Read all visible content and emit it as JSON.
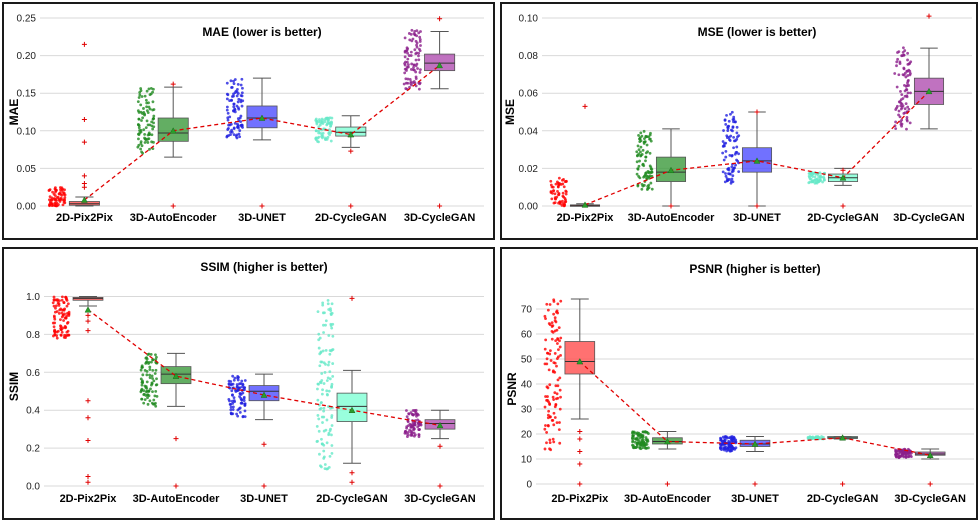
{
  "chart_data": [
    {
      "type": "box",
      "title": "MAE (lower is better)",
      "ylabel": "MAE",
      "ylim": [
        0,
        0.25
      ],
      "yticks": [
        "0.00",
        "0.05",
        "0.10",
        "0.15",
        "0.20",
        "0.25"
      ],
      "ytick_values": [
        0,
        0.05,
        0.1,
        0.15,
        0.2,
        0.25
      ],
      "categories": [
        "2D-Pix2Pix",
        "3D-AutoEncoder",
        "3D-UNET",
        "2D-CycleGAN",
        "3D-CycleGAN"
      ],
      "colors": [
        "#ff4d4d",
        "#3c9a3c",
        "#4d4dff",
        "#7fffd4",
        "#b04fb0"
      ],
      "point_colors": [
        "#ff0000",
        "#1f8a1f",
        "#2020e0",
        "#66e8c8",
        "#8b1e8b"
      ],
      "boxes": [
        {
          "min": 0.0,
          "q1": 0.001,
          "median": 0.003,
          "q3": 0.006,
          "max": 0.012,
          "mean": 0.008
        },
        {
          "min": 0.065,
          "q1": 0.086,
          "median": 0.097,
          "q3": 0.117,
          "max": 0.158,
          "mean": 0.1
        },
        {
          "min": 0.088,
          "q1": 0.104,
          "median": 0.117,
          "q3": 0.133,
          "max": 0.17,
          "mean": 0.117
        },
        {
          "min": 0.078,
          "q1": 0.093,
          "median": 0.098,
          "q3": 0.105,
          "max": 0.12,
          "mean": 0.095
        },
        {
          "min": 0.156,
          "q1": 0.18,
          "median": 0.19,
          "q3": 0.202,
          "max": 0.232,
          "mean": 0.187
        }
      ],
      "outliers": [
        [
          0.215,
          0.115,
          0.085,
          0.04,
          0.03,
          0.025
        ],
        [
          0.162,
          0.0
        ],
        [
          0.0
        ],
        [
          0.073,
          0.0
        ],
        [
          0.249,
          0.0
        ]
      ],
      "jitter": [
        {
          "lo": 0.0,
          "hi": 0.025,
          "n": 70
        },
        {
          "lo": 0.07,
          "hi": 0.16,
          "n": 90
        },
        {
          "lo": 0.09,
          "hi": 0.17,
          "n": 90
        },
        {
          "lo": 0.085,
          "hi": 0.118,
          "n": 70
        },
        {
          "lo": 0.155,
          "hi": 0.235,
          "n": 90
        }
      ]
    },
    {
      "type": "box",
      "title": "MSE (lower is better)",
      "ylabel": "MSE",
      "ylim": [
        0,
        0.1
      ],
      "yticks": [
        "0.00",
        "0.02",
        "0.04",
        "0.06",
        "0.08",
        "0.10"
      ],
      "ytick_values": [
        0,
        0.02,
        0.04,
        0.06,
        0.08,
        0.1
      ],
      "categories": [
        "2D-Pix2Pix",
        "3D-AutoEncoder",
        "3D-UNET",
        "2D-CycleGAN",
        "3D-CycleGAN"
      ],
      "colors": [
        "#ff4d4d",
        "#3c9a3c",
        "#4d4dff",
        "#7fffd4",
        "#b04fb0"
      ],
      "point_colors": [
        "#ff0000",
        "#1f8a1f",
        "#2020e0",
        "#66e8c8",
        "#8b1e8b"
      ],
      "boxes": [
        {
          "min": 0.0,
          "q1": 0.0,
          "median": 0.0003,
          "q3": 0.0006,
          "max": 0.0012,
          "mean": 0.0006
        },
        {
          "min": 0.0,
          "q1": 0.013,
          "median": 0.018,
          "q3": 0.026,
          "max": 0.041,
          "mean": 0.019
        },
        {
          "min": 0.0,
          "q1": 0.018,
          "median": 0.024,
          "q3": 0.031,
          "max": 0.05,
          "mean": 0.024
        },
        {
          "min": 0.011,
          "q1": 0.013,
          "median": 0.015,
          "q3": 0.017,
          "max": 0.02,
          "mean": 0.015
        },
        {
          "min": 0.041,
          "q1": 0.054,
          "median": 0.061,
          "q3": 0.068,
          "max": 0.084,
          "mean": 0.061
        }
      ],
      "outliers": [
        [
          0.053
        ],
        [
          0.0
        ],
        [
          0.0,
          0.05
        ],
        [
          0.019,
          0.0
        ],
        [
          0.101
        ]
      ],
      "jitter": [
        {
          "lo": 0.0,
          "hi": 0.015,
          "n": 60
        },
        {
          "lo": 0.008,
          "hi": 0.04,
          "n": 90
        },
        {
          "lo": 0.012,
          "hi": 0.05,
          "n": 90
        },
        {
          "lo": 0.012,
          "hi": 0.018,
          "n": 60
        },
        {
          "lo": 0.04,
          "hi": 0.085,
          "n": 90
        }
      ]
    },
    {
      "type": "box",
      "title": "SSIM (higher is better)",
      "ylabel": "SSIM",
      "ylim": [
        0,
        1.05
      ],
      "yticks": [
        "0.0",
        "0.2",
        "0.4",
        "0.6",
        "0.8",
        "1.0"
      ],
      "ytick_values": [
        0,
        0.2,
        0.4,
        0.6,
        0.8,
        1.0
      ],
      "categories": [
        "2D-Pix2Pix",
        "3D-AutoEncoder",
        "3D-UNET",
        "2D-CycleGAN",
        "3D-CycleGAN"
      ],
      "colors": [
        "#ff4d4d",
        "#3c9a3c",
        "#4d4dff",
        "#7fffd4",
        "#b04fb0"
      ],
      "point_colors": [
        "#ff0000",
        "#1f8a1f",
        "#2020e0",
        "#66e8c8",
        "#8b1e8b"
      ],
      "boxes": [
        {
          "min": 0.95,
          "q1": 0.98,
          "median": 0.99,
          "q3": 0.995,
          "max": 1.0,
          "mean": 0.93
        },
        {
          "min": 0.42,
          "q1": 0.54,
          "median": 0.59,
          "q3": 0.63,
          "max": 0.7,
          "mean": 0.58
        },
        {
          "min": 0.35,
          "q1": 0.45,
          "median": 0.5,
          "q3": 0.53,
          "max": 0.59,
          "mean": 0.48
        },
        {
          "min": 0.12,
          "q1": 0.34,
          "median": 0.42,
          "q3": 0.49,
          "max": 0.61,
          "mean": 0.4
        },
        {
          "min": 0.25,
          "q1": 0.3,
          "median": 0.33,
          "q3": 0.35,
          "max": 0.4,
          "mean": 0.32
        }
      ],
      "outliers": [
        [
          0.9,
          0.87,
          0.82,
          0.45,
          0.36,
          0.24,
          0.05,
          0.02
        ],
        [
          0.25,
          0.0
        ],
        [
          0.22,
          0.0
        ],
        [
          0.99,
          0.07,
          0.02
        ],
        [
          0.21,
          0.0
        ]
      ],
      "jitter": [
        {
          "lo": 0.78,
          "hi": 1.0,
          "n": 90
        },
        {
          "lo": 0.42,
          "hi": 0.7,
          "n": 90
        },
        {
          "lo": 0.36,
          "hi": 0.58,
          "n": 90
        },
        {
          "lo": 0.08,
          "hi": 0.98,
          "n": 120
        },
        {
          "lo": 0.26,
          "hi": 0.4,
          "n": 80
        }
      ]
    },
    {
      "type": "box",
      "title": "PSNR (higher is better)",
      "ylabel": "PSNR",
      "ylim": [
        0,
        76
      ],
      "yticks": [
        "0",
        "10",
        "20",
        "30",
        "40",
        "50",
        "60",
        "70"
      ],
      "ytick_values": [
        0,
        10,
        20,
        30,
        40,
        50,
        60,
        70
      ],
      "categories": [
        "2D-Pix2Pix",
        "3D-AutoEncoder",
        "3D-UNET",
        "2D-CycleGAN",
        "3D-CycleGAN"
      ],
      "colors": [
        "#ff4d4d",
        "#3c9a3c",
        "#4d4dff",
        "#7fffd4",
        "#b04fb0"
      ],
      "point_colors": [
        "#ff0000",
        "#1f8a1f",
        "#2020e0",
        "#66e8c8",
        "#8b1e8b"
      ],
      "boxes": [
        {
          "min": 26,
          "q1": 44,
          "median": 49,
          "q3": 57,
          "max": 74,
          "mean": 49
        },
        {
          "min": 14,
          "q1": 16,
          "median": 17,
          "q3": 18.5,
          "max": 21,
          "mean": 17
        },
        {
          "min": 13,
          "q1": 15,
          "median": 16,
          "q3": 17.5,
          "max": 19,
          "mean": 16
        },
        {
          "min": 18,
          "q1": 18.2,
          "median": 18.5,
          "q3": 19,
          "max": 19,
          "mean": 18.5
        },
        {
          "min": 10,
          "q1": 11.5,
          "median": 12,
          "q3": 12.8,
          "max": 14,
          "mean": 11.5
        }
      ],
      "outliers": [
        [
          21,
          18,
          13,
          8,
          0
        ],
        [
          0
        ],
        [
          0
        ],
        [
          0
        ],
        [
          0
        ]
      ],
      "jitter": [
        {
          "lo": 12,
          "hi": 74,
          "n": 110
        },
        {
          "lo": 14,
          "hi": 21,
          "n": 90
        },
        {
          "lo": 13,
          "hi": 19,
          "n": 90
        },
        {
          "lo": 18,
          "hi": 19,
          "n": 40
        },
        {
          "lo": 10.5,
          "hi": 14,
          "n": 80
        }
      ]
    }
  ]
}
